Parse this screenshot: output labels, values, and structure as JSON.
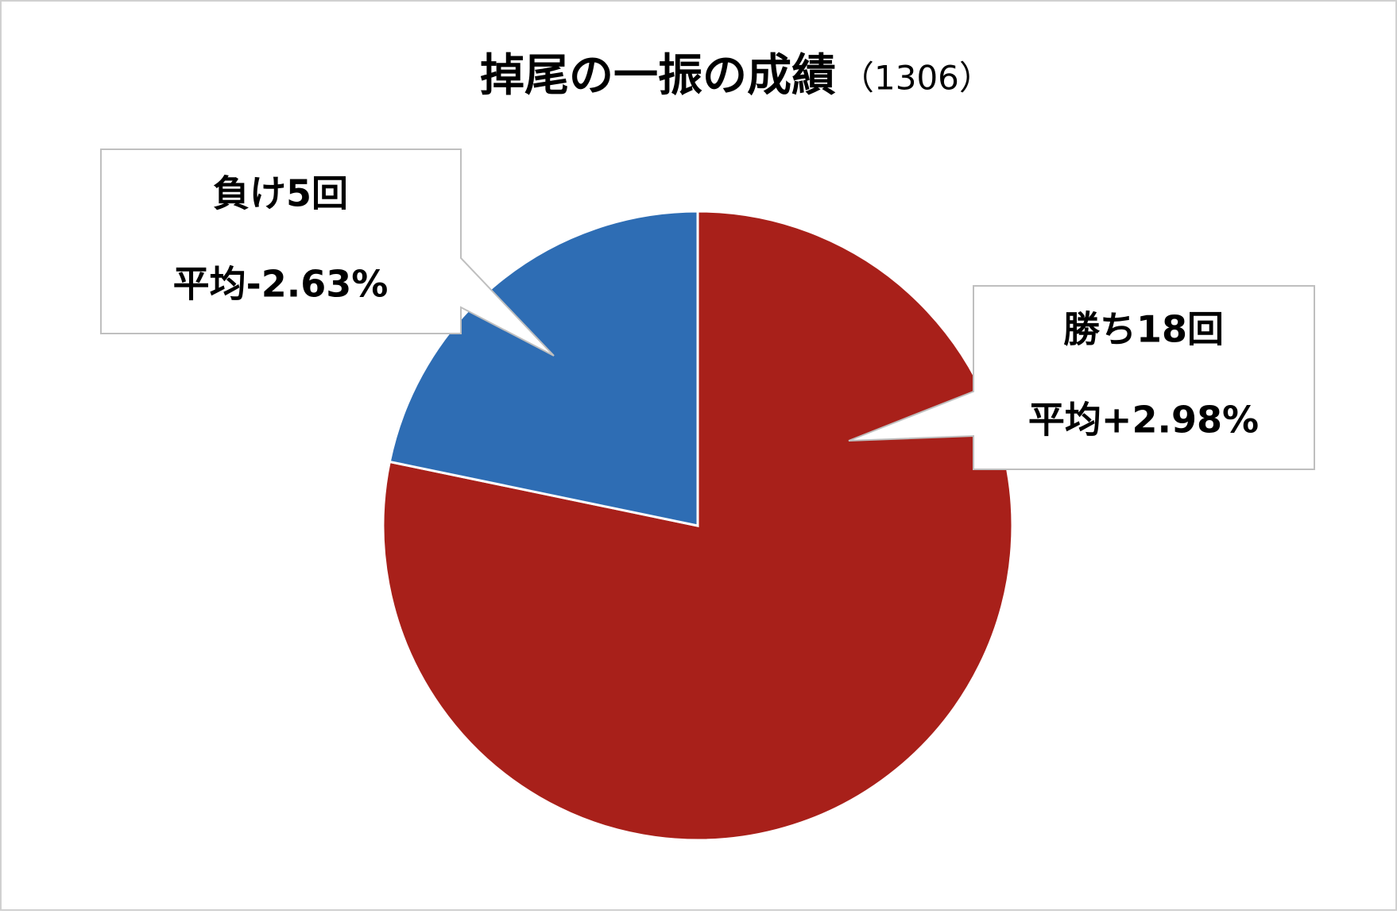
{
  "chart_data": {
    "type": "pie",
    "title": "掉尾の一振の成績",
    "subtitle": "（1306）",
    "values": [
      18,
      5
    ],
    "value_labels": [
      "勝ち18回",
      "負け5回"
    ],
    "averages": [
      "平均+2.98%",
      "平均-2.63%"
    ],
    "colors": [
      "#a8201a",
      "#2e6db4"
    ]
  }
}
